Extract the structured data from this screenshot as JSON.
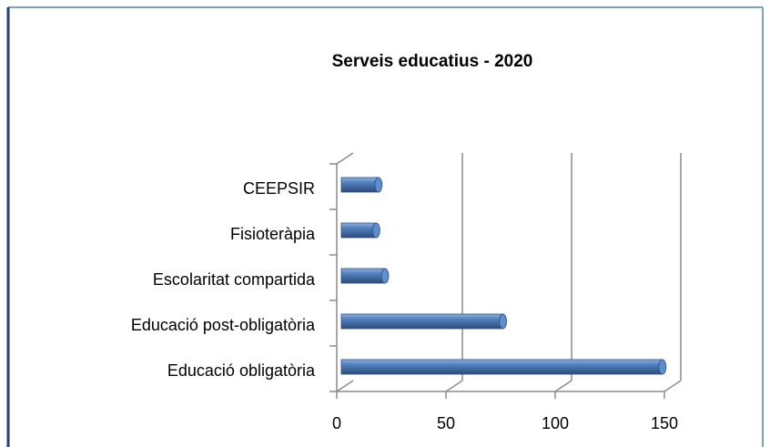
{
  "chart_data": {
    "type": "bar",
    "orientation": "horizontal",
    "title": "Serveis educatius - 2020",
    "categories": [
      "Educació obligatòria",
      "Educació post-obligatòria",
      "Escolaritat compartida",
      "Fisioteràpia",
      "CEEPSIR"
    ],
    "values": [
      147,
      74,
      20,
      16,
      17
    ],
    "color": "#4f81bd",
    "xlim": [
      0,
      150
    ],
    "xticks": [
      0,
      50,
      100,
      150
    ],
    "grid": true
  }
}
